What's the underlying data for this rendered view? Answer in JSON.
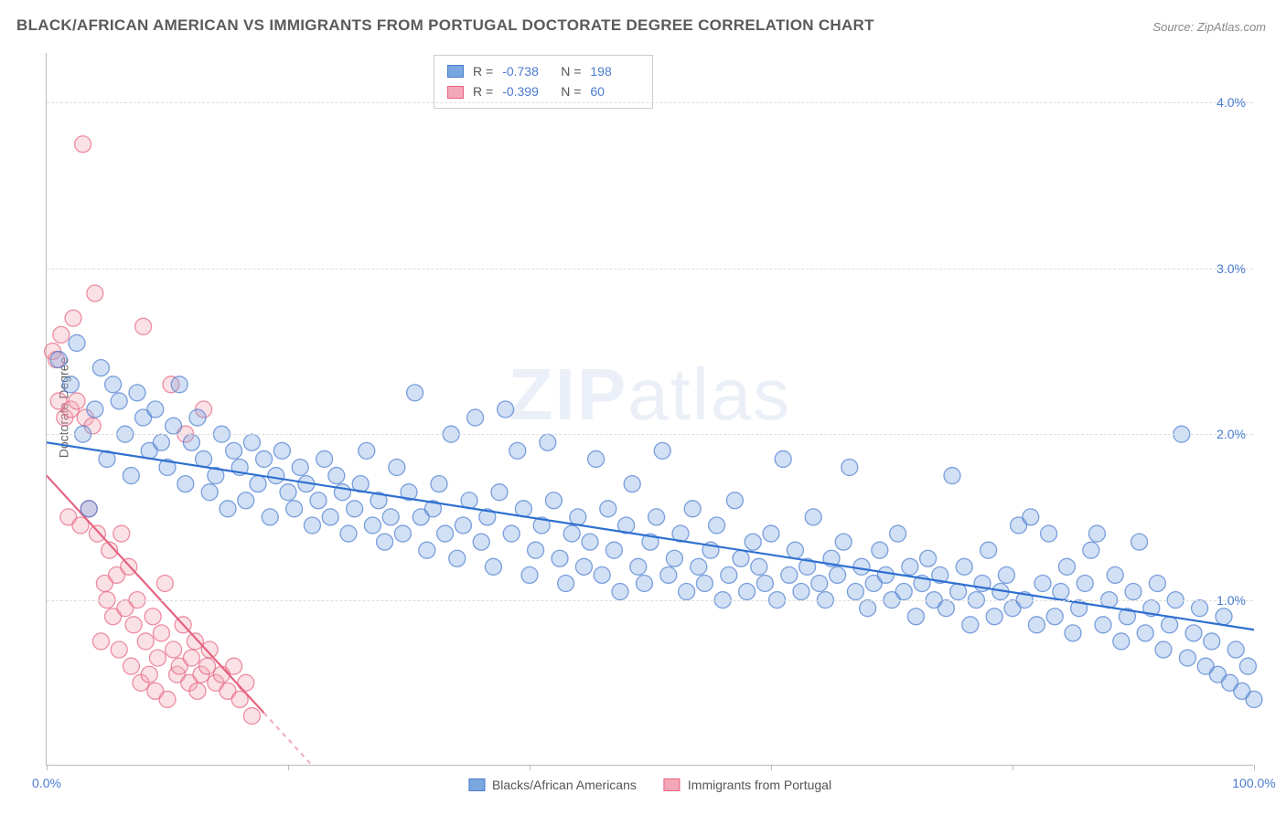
{
  "title": "BLACK/AFRICAN AMERICAN VS IMMIGRANTS FROM PORTUGAL DOCTORATE DEGREE CORRELATION CHART",
  "source": "Source: ZipAtlas.com",
  "y_axis_label": "Doctorate Degree",
  "watermark_a": "ZIP",
  "watermark_b": "atlas",
  "chart": {
    "type": "scatter",
    "background_color": "#ffffff",
    "grid_color": "#dddddd",
    "axis_color": "#bbbbbb",
    "xlim": [
      0,
      100
    ],
    "ylim": [
      0,
      4.3
    ],
    "x_ticks": [
      0,
      20,
      40,
      60,
      80,
      100
    ],
    "x_tick_labels_shown": {
      "0": "0.0%",
      "100": "100.0%"
    },
    "y_ticks": [
      1.0,
      2.0,
      3.0,
      4.0
    ],
    "y_tick_labels": [
      "1.0%",
      "2.0%",
      "3.0%",
      "4.0%"
    ],
    "tick_label_color": "#4a7bd0",
    "tick_fontsize": 14,
    "marker_radius": 9,
    "marker_fill_opacity": 0.35,
    "marker_stroke_opacity": 0.7,
    "marker_stroke_width": 1.3,
    "series": [
      {
        "name": "Blacks/African Americans",
        "color": "#7aa7e0",
        "stroke": "#4a7bd0",
        "trend_color": "#2e6fd0",
        "trend_width": 2.2,
        "trend": {
          "x1": 0,
          "y1": 1.95,
          "x2": 100,
          "y2": 0.82
        },
        "R": "-0.738",
        "N": "198",
        "points": [
          [
            1,
            2.45
          ],
          [
            2,
            2.3
          ],
          [
            2.5,
            2.55
          ],
          [
            3,
            2.0
          ],
          [
            3.5,
            1.55
          ],
          [
            4,
            2.15
          ],
          [
            4.5,
            2.4
          ],
          [
            5,
            1.85
          ],
          [
            5.5,
            2.3
          ],
          [
            6,
            2.2
          ],
          [
            6.5,
            2.0
          ],
          [
            7,
            1.75
          ],
          [
            7.5,
            2.25
          ],
          [
            8,
            2.1
          ],
          [
            8.5,
            1.9
          ],
          [
            9,
            2.15
          ],
          [
            9.5,
            1.95
          ],
          [
            10,
            1.8
          ],
          [
            10.5,
            2.05
          ],
          [
            11,
            2.3
          ],
          [
            11.5,
            1.7
          ],
          [
            12,
            1.95
          ],
          [
            12.5,
            2.1
          ],
          [
            13,
            1.85
          ],
          [
            13.5,
            1.65
          ],
          [
            14,
            1.75
          ],
          [
            14.5,
            2.0
          ],
          [
            15,
            1.55
          ],
          [
            15.5,
            1.9
          ],
          [
            16,
            1.8
          ],
          [
            16.5,
            1.6
          ],
          [
            17,
            1.95
          ],
          [
            17.5,
            1.7
          ],
          [
            18,
            1.85
          ],
          [
            18.5,
            1.5
          ],
          [
            19,
            1.75
          ],
          [
            19.5,
            1.9
          ],
          [
            20,
            1.65
          ],
          [
            20.5,
            1.55
          ],
          [
            21,
            1.8
          ],
          [
            21.5,
            1.7
          ],
          [
            22,
            1.45
          ],
          [
            22.5,
            1.6
          ],
          [
            23,
            1.85
          ],
          [
            23.5,
            1.5
          ],
          [
            24,
            1.75
          ],
          [
            24.5,
            1.65
          ],
          [
            25,
            1.4
          ],
          [
            25.5,
            1.55
          ],
          [
            26,
            1.7
          ],
          [
            26.5,
            1.9
          ],
          [
            27,
            1.45
          ],
          [
            27.5,
            1.6
          ],
          [
            28,
            1.35
          ],
          [
            28.5,
            1.5
          ],
          [
            29,
            1.8
          ],
          [
            29.5,
            1.4
          ],
          [
            30,
            1.65
          ],
          [
            30.5,
            2.25
          ],
          [
            31,
            1.5
          ],
          [
            31.5,
            1.3
          ],
          [
            32,
            1.55
          ],
          [
            32.5,
            1.7
          ],
          [
            33,
            1.4
          ],
          [
            33.5,
            2.0
          ],
          [
            34,
            1.25
          ],
          [
            34.5,
            1.45
          ],
          [
            35,
            1.6
          ],
          [
            35.5,
            2.1
          ],
          [
            36,
            1.35
          ],
          [
            36.5,
            1.5
          ],
          [
            37,
            1.2
          ],
          [
            37.5,
            1.65
          ],
          [
            38,
            2.15
          ],
          [
            38.5,
            1.4
          ],
          [
            39,
            1.9
          ],
          [
            39.5,
            1.55
          ],
          [
            40,
            1.15
          ],
          [
            40.5,
            1.3
          ],
          [
            41,
            1.45
          ],
          [
            41.5,
            1.95
          ],
          [
            42,
            1.6
          ],
          [
            42.5,
            1.25
          ],
          [
            43,
            1.1
          ],
          [
            43.5,
            1.4
          ],
          [
            44,
            1.5
          ],
          [
            44.5,
            1.2
          ],
          [
            45,
            1.35
          ],
          [
            45.5,
            1.85
          ],
          [
            46,
            1.15
          ],
          [
            46.5,
            1.55
          ],
          [
            47,
            1.3
          ],
          [
            47.5,
            1.05
          ],
          [
            48,
            1.45
          ],
          [
            48.5,
            1.7
          ],
          [
            49,
            1.2
          ],
          [
            49.5,
            1.1
          ],
          [
            50,
            1.35
          ],
          [
            50.5,
            1.5
          ],
          [
            51,
            1.9
          ],
          [
            51.5,
            1.15
          ],
          [
            52,
            1.25
          ],
          [
            52.5,
            1.4
          ],
          [
            53,
            1.05
          ],
          [
            53.5,
            1.55
          ],
          [
            54,
            1.2
          ],
          [
            54.5,
            1.1
          ],
          [
            55,
            1.3
          ],
          [
            55.5,
            1.45
          ],
          [
            56,
            1.0
          ],
          [
            56.5,
            1.15
          ],
          [
            57,
            1.6
          ],
          [
            57.5,
            1.25
          ],
          [
            58,
            1.05
          ],
          [
            58.5,
            1.35
          ],
          [
            59,
            1.2
          ],
          [
            59.5,
            1.1
          ],
          [
            60,
            1.4
          ],
          [
            60.5,
            1.0
          ],
          [
            61,
            1.85
          ],
          [
            61.5,
            1.15
          ],
          [
            62,
            1.3
          ],
          [
            62.5,
            1.05
          ],
          [
            63,
            1.2
          ],
          [
            63.5,
            1.5
          ],
          [
            64,
            1.1
          ],
          [
            64.5,
            1.0
          ],
          [
            65,
            1.25
          ],
          [
            65.5,
            1.15
          ],
          [
            66,
            1.35
          ],
          [
            66.5,
            1.8
          ],
          [
            67,
            1.05
          ],
          [
            67.5,
            1.2
          ],
          [
            68,
            0.95
          ],
          [
            68.5,
            1.1
          ],
          [
            69,
            1.3
          ],
          [
            69.5,
            1.15
          ],
          [
            70,
            1.0
          ],
          [
            70.5,
            1.4
          ],
          [
            71,
            1.05
          ],
          [
            71.5,
            1.2
          ],
          [
            72,
            0.9
          ],
          [
            72.5,
            1.1
          ],
          [
            73,
            1.25
          ],
          [
            73.5,
            1.0
          ],
          [
            74,
            1.15
          ],
          [
            74.5,
            0.95
          ],
          [
            75,
            1.75
          ],
          [
            75.5,
            1.05
          ],
          [
            76,
            1.2
          ],
          [
            76.5,
            0.85
          ],
          [
            77,
            1.0
          ],
          [
            77.5,
            1.1
          ],
          [
            78,
            1.3
          ],
          [
            78.5,
            0.9
          ],
          [
            79,
            1.05
          ],
          [
            79.5,
            1.15
          ],
          [
            80,
            0.95
          ],
          [
            80.5,
            1.45
          ],
          [
            81,
            1.0
          ],
          [
            81.5,
            1.5
          ],
          [
            82,
            0.85
          ],
          [
            82.5,
            1.1
          ],
          [
            83,
            1.4
          ],
          [
            83.5,
            0.9
          ],
          [
            84,
            1.05
          ],
          [
            84.5,
            1.2
          ],
          [
            85,
            0.8
          ],
          [
            85.5,
            0.95
          ],
          [
            86,
            1.1
          ],
          [
            86.5,
            1.3
          ],
          [
            87,
            1.4
          ],
          [
            87.5,
            0.85
          ],
          [
            88,
            1.0
          ],
          [
            88.5,
            1.15
          ],
          [
            89,
            0.75
          ],
          [
            89.5,
            0.9
          ],
          [
            90,
            1.05
          ],
          [
            90.5,
            1.35
          ],
          [
            91,
            0.8
          ],
          [
            91.5,
            0.95
          ],
          [
            92,
            1.1
          ],
          [
            92.5,
            0.7
          ],
          [
            93,
            0.85
          ],
          [
            93.5,
            1.0
          ],
          [
            94,
            2.0
          ],
          [
            94.5,
            0.65
          ],
          [
            95,
            0.8
          ],
          [
            95.5,
            0.95
          ],
          [
            96,
            0.6
          ],
          [
            96.5,
            0.75
          ],
          [
            97,
            0.55
          ],
          [
            97.5,
            0.9
          ],
          [
            98,
            0.5
          ],
          [
            98.5,
            0.7
          ],
          [
            99,
            0.45
          ],
          [
            99.5,
            0.6
          ],
          [
            100,
            0.4
          ]
        ]
      },
      {
        "name": "Immigrants from Portugal",
        "color": "#f2a8b8",
        "stroke": "#e6627f",
        "trend_color": "#e6627f",
        "trend_width": 2.2,
        "trend_dash_after": 18,
        "trend": {
          "x1": 0,
          "y1": 1.75,
          "x2": 22,
          "y2": 0.0
        },
        "R": "-0.399",
        "N": "60",
        "points": [
          [
            0.5,
            2.5
          ],
          [
            0.8,
            2.45
          ],
          [
            1,
            2.2
          ],
          [
            1.2,
            2.6
          ],
          [
            1.5,
            2.1
          ],
          [
            1.8,
            1.5
          ],
          [
            2,
            2.15
          ],
          [
            2.2,
            2.7
          ],
          [
            2.5,
            2.2
          ],
          [
            2.8,
            1.45
          ],
          [
            3,
            3.75
          ],
          [
            3.2,
            2.1
          ],
          [
            3.5,
            1.55
          ],
          [
            3.8,
            2.05
          ],
          [
            4,
            2.85
          ],
          [
            4.2,
            1.4
          ],
          [
            4.5,
            0.75
          ],
          [
            4.8,
            1.1
          ],
          [
            5,
            1.0
          ],
          [
            5.2,
            1.3
          ],
          [
            5.5,
            0.9
          ],
          [
            5.8,
            1.15
          ],
          [
            6,
            0.7
          ],
          [
            6.2,
            1.4
          ],
          [
            6.5,
            0.95
          ],
          [
            6.8,
            1.2
          ],
          [
            7,
            0.6
          ],
          [
            7.2,
            0.85
          ],
          [
            7.5,
            1.0
          ],
          [
            7.8,
            0.5
          ],
          [
            8,
            2.65
          ],
          [
            8.2,
            0.75
          ],
          [
            8.5,
            0.55
          ],
          [
            8.8,
            0.9
          ],
          [
            9,
            0.45
          ],
          [
            9.2,
            0.65
          ],
          [
            9.5,
            0.8
          ],
          [
            9.8,
            1.1
          ],
          [
            10,
            0.4
          ],
          [
            10.3,
            2.3
          ],
          [
            10.5,
            0.7
          ],
          [
            10.8,
            0.55
          ],
          [
            11,
            0.6
          ],
          [
            11.3,
            0.85
          ],
          [
            11.5,
            2.0
          ],
          [
            11.8,
            0.5
          ],
          [
            12,
            0.65
          ],
          [
            12.3,
            0.75
          ],
          [
            12.5,
            0.45
          ],
          [
            12.8,
            0.55
          ],
          [
            13,
            2.15
          ],
          [
            13.3,
            0.6
          ],
          [
            13.5,
            0.7
          ],
          [
            14,
            0.5
          ],
          [
            14.5,
            0.55
          ],
          [
            15,
            0.45
          ],
          [
            15.5,
            0.6
          ],
          [
            16,
            0.4
          ],
          [
            16.5,
            0.5
          ],
          [
            17,
            0.3
          ]
        ]
      }
    ]
  },
  "legend_stats_labels": {
    "R": "R =",
    "N": "N ="
  },
  "bottom_legend": [
    "Blacks/African Americans",
    "Immigrants from Portugal"
  ]
}
